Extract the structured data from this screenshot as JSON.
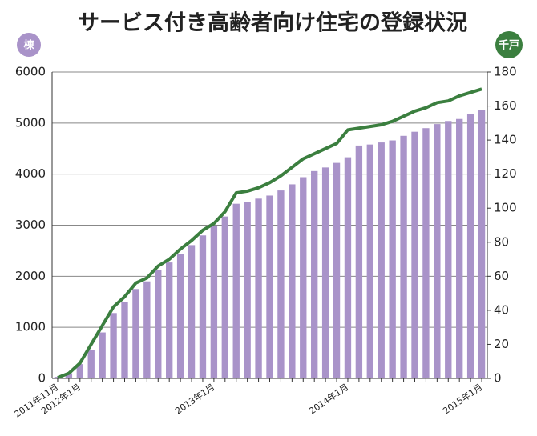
{
  "chart_data": {
    "type": "combo",
    "title": "サービス付き高齢者向け住宅の登録状況",
    "y_label": "棟",
    "y2_label": "千戸",
    "categories": [
      "2011年11月",
      null,
      "2012年1月",
      null,
      null,
      null,
      null,
      null,
      null,
      null,
      null,
      null,
      null,
      null,
      "2013年1月",
      null,
      null,
      null,
      null,
      null,
      null,
      null,
      null,
      null,
      null,
      null,
      "2014年1月",
      null,
      null,
      null,
      null,
      null,
      null,
      null,
      null,
      null,
      null,
      null,
      "2015年1月"
    ],
    "series": [
      {
        "type": "bar",
        "axis": "y",
        "color": "#a993c9",
        "values": [
          30,
          100,
          280,
          560,
          900,
          1280,
          1490,
          1750,
          1900,
          2120,
          2270,
          2440,
          2610,
          2800,
          2990,
          3170,
          3420,
          3460,
          3520,
          3580,
          3680,
          3800,
          3940,
          4060,
          4130,
          4220,
          4330,
          4560,
          4580,
          4620,
          4660,
          4750,
          4830,
          4900,
          4980,
          5040,
          5080,
          5180,
          5260
        ]
      },
      {
        "type": "line",
        "axis": "y2",
        "color": "#3b7f3f",
        "values": [
          0.5,
          3,
          9,
          20,
          31,
          42,
          48,
          56,
          59,
          66,
          70,
          76,
          81,
          87,
          91,
          98,
          109,
          110,
          112,
          115,
          119,
          124,
          129,
          132,
          135,
          138,
          146,
          147,
          148,
          149,
          151,
          154,
          157,
          159,
          162,
          163,
          166,
          168,
          170
        ]
      }
    ],
    "ylim": [
      0,
      6000
    ],
    "yticks": [
      0,
      1000,
      2000,
      3000,
      4000,
      5000,
      6000
    ],
    "y2lim": [
      0,
      180
    ],
    "y2ticks": [
      0,
      20,
      40,
      60,
      80,
      100,
      120,
      140,
      160,
      180
    ],
    "grid": true
  }
}
